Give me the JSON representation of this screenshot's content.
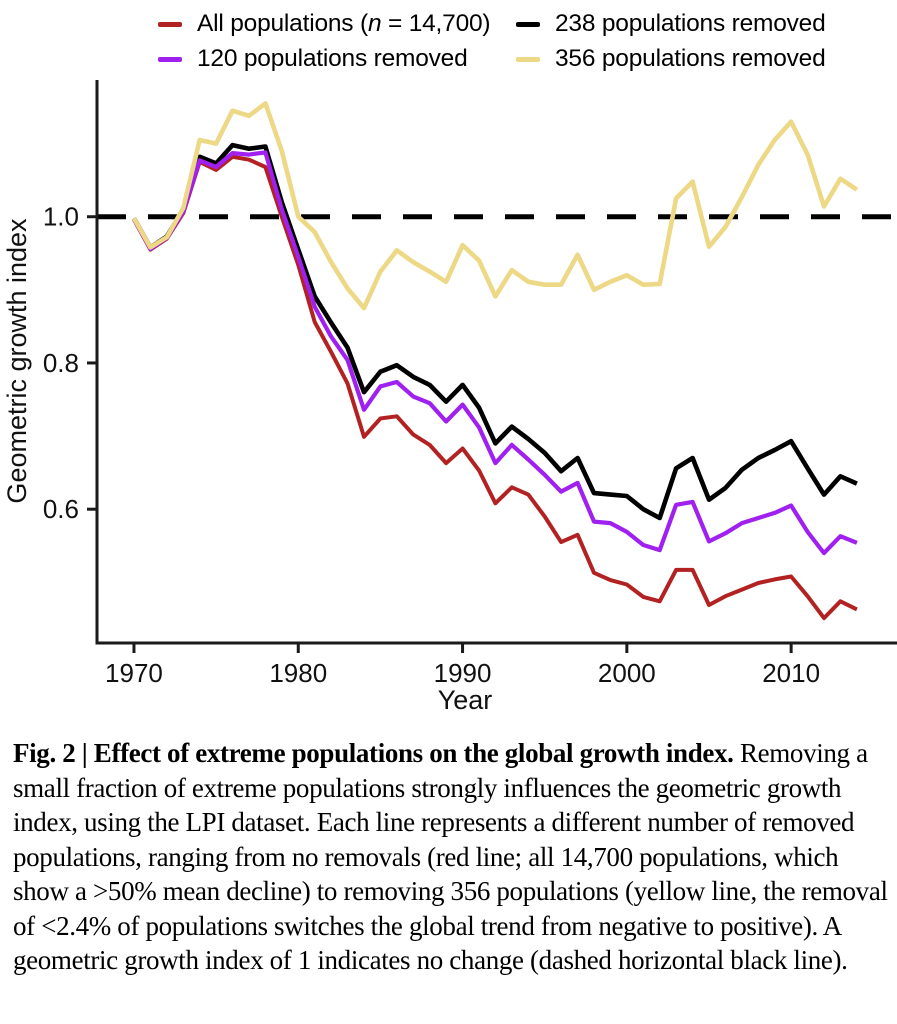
{
  "legend": {
    "items": [
      {
        "id": "all-populations",
        "pre": "All populations (",
        "italic": "n",
        "post": " = 14,700)",
        "color": "#B22222"
      },
      {
        "id": "238-removed",
        "label": "238 populations removed",
        "color": "#000000"
      },
      {
        "id": "120-removed",
        "label": "120 populations removed",
        "color": "#A020F0"
      },
      {
        "id": "356-removed",
        "label": "356 populations removed",
        "color": "#EDD886"
      }
    ]
  },
  "chart_data": {
    "type": "line",
    "title": "",
    "xlabel": "Year",
    "ylabel": "Geometric growth index",
    "grid": false,
    "legend_position": "top",
    "xlim": [
      1967.75,
      2016.2
    ],
    "ylim": [
      0.417,
      1.187
    ],
    "x_ticks": [
      1970,
      1980,
      1990,
      2000,
      2010
    ],
    "y_ticks": [
      1.0,
      0.8,
      0.6
    ],
    "reference_line": {
      "y": 1.0,
      "style": "dashed",
      "color": "#000000",
      "meaning": "index of 1 indicates no change"
    },
    "x": [
      1970,
      1971,
      1972,
      1973,
      1974,
      1975,
      1976,
      1977,
      1978,
      1979,
      1980,
      1981,
      1982,
      1983,
      1984,
      1985,
      1986,
      1987,
      1988,
      1989,
      1990,
      1991,
      1992,
      1993,
      1994,
      1995,
      1996,
      1997,
      1998,
      1999,
      2000,
      2001,
      2002,
      2003,
      2004,
      2005,
      2006,
      2007,
      2008,
      2009,
      2010,
      2011,
      2012,
      2013,
      2014
    ],
    "z_order": [
      2,
      0,
      1,
      3
    ],
    "series": [
      {
        "id": "all-populations",
        "name": "All populations (n = 14,700)",
        "color": "#B22222",
        "width": 4.0,
        "values": [
          0.996,
          0.955,
          0.97,
          1.005,
          1.075,
          1.064,
          1.082,
          1.078,
          1.068,
          1.0,
          0.934,
          0.856,
          0.815,
          0.772,
          0.699,
          0.724,
          0.727,
          0.702,
          0.688,
          0.663,
          0.683,
          0.653,
          0.608,
          0.63,
          0.62,
          0.59,
          0.555,
          0.565,
          0.513,
          0.503,
          0.497,
          0.48,
          0.474,
          0.517,
          0.517,
          0.469,
          0.481,
          0.49,
          0.499,
          0.504,
          0.508,
          0.481,
          0.451,
          0.474,
          0.463
        ]
      },
      {
        "id": "120-removed",
        "name": "120 populations removed",
        "color": "#A020F0",
        "width": 4.2,
        "values": [
          0.997,
          0.956,
          0.971,
          1.007,
          1.077,
          1.068,
          1.087,
          1.085,
          1.088,
          1.01,
          0.945,
          0.877,
          0.836,
          0.804,
          0.736,
          0.768,
          0.774,
          0.754,
          0.745,
          0.72,
          0.743,
          0.712,
          0.663,
          0.688,
          0.668,
          0.647,
          0.624,
          0.636,
          0.583,
          0.581,
          0.569,
          0.551,
          0.544,
          0.606,
          0.61,
          0.556,
          0.567,
          0.581,
          0.588,
          0.595,
          0.605,
          0.569,
          0.54,
          0.563,
          0.554
        ]
      },
      {
        "id": "238-removed",
        "name": "238 populations removed",
        "color": "#000000",
        "width": 4.6,
        "values": [
          0.998,
          0.958,
          0.973,
          1.01,
          1.082,
          1.073,
          1.098,
          1.093,
          1.096,
          1.02,
          0.955,
          0.891,
          0.855,
          0.821,
          0.76,
          0.788,
          0.797,
          0.781,
          0.77,
          0.747,
          0.77,
          0.739,
          0.69,
          0.713,
          0.696,
          0.677,
          0.652,
          0.67,
          0.622,
          0.62,
          0.618,
          0.6,
          0.588,
          0.656,
          0.67,
          0.613,
          0.629,
          0.654,
          0.67,
          0.681,
          0.693,
          0.656,
          0.62,
          0.645,
          0.635
        ]
      },
      {
        "id": "356-removed",
        "name": "356 populations removed",
        "color": "#EDD886",
        "width": 4.6,
        "values": [
          0.998,
          0.958,
          0.972,
          1.012,
          1.105,
          1.1,
          1.145,
          1.138,
          1.155,
          1.09,
          1.0,
          0.979,
          0.938,
          0.902,
          0.875,
          0.925,
          0.954,
          0.938,
          0.925,
          0.911,
          0.961,
          0.94,
          0.891,
          0.927,
          0.911,
          0.907,
          0.907,
          0.948,
          0.9,
          0.911,
          0.92,
          0.907,
          0.908,
          1.025,
          1.048,
          0.959,
          0.986,
          1.027,
          1.071,
          1.105,
          1.13,
          1.085,
          1.014,
          1.052,
          1.037
        ]
      }
    ]
  },
  "caption": {
    "bold": "Fig. 2 | Effect of extreme populations on the global growth index.",
    "body": " Removing a small fraction of extreme populations strongly influences the geometric growth index, using the LPI dataset. Each line represents a different number of removed populations, ranging from no removals (red line; all 14,700 populations, which show a >50% mean decline) to removing 356 populations (yellow line, the removal of <2.4% of populations switches the global trend from negative to positive). A geometric growth index of 1 indicates no change (dashed horizontal black line)."
  }
}
